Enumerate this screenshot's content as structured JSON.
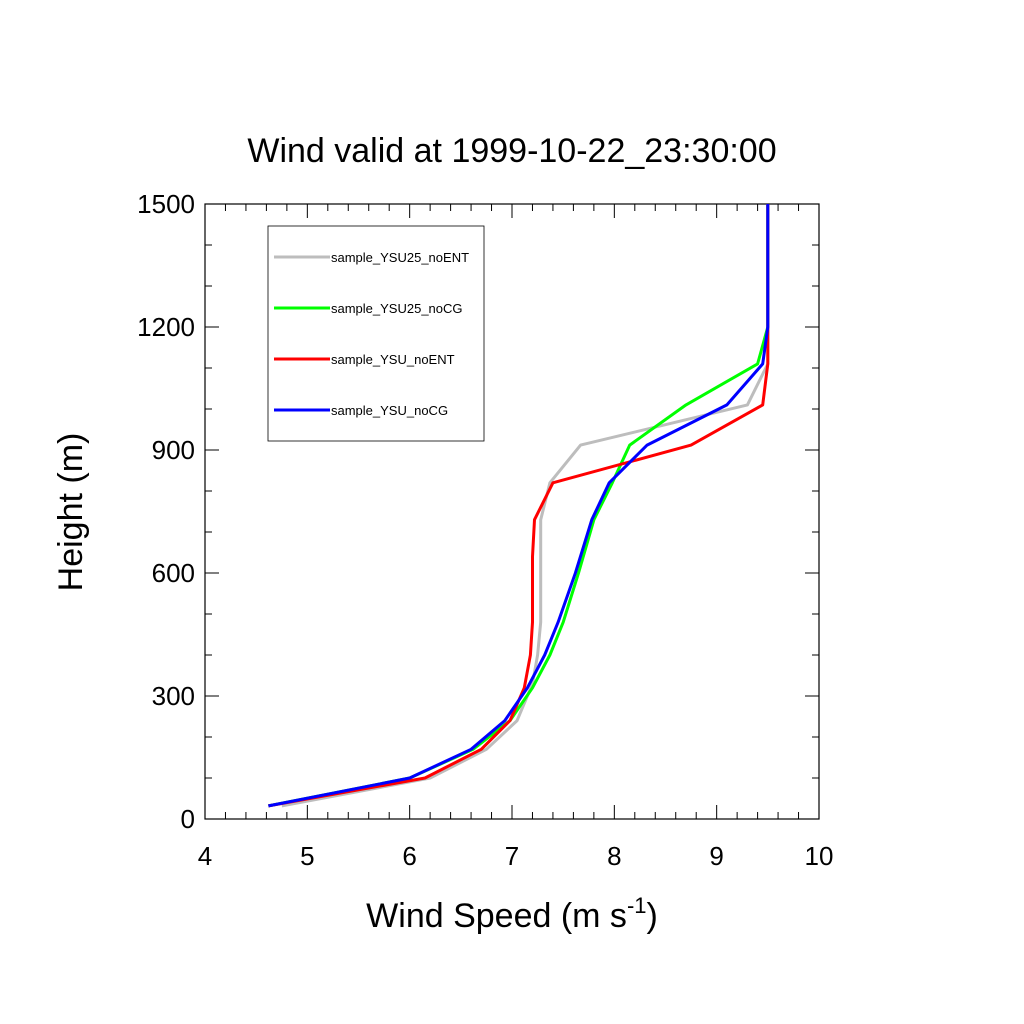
{
  "chart_data": {
    "type": "line",
    "title": "Wind valid at 1999-10-22_23:30:00",
    "xlabel": "Wind Speed (m s",
    "xlabel_superscript": "-1",
    "xlabel_suffix": ")",
    "ylabel": "Height (m)",
    "xlim": [
      4,
      10
    ],
    "ylim": [
      0,
      1500
    ],
    "xticks": [
      4,
      5,
      6,
      7,
      8,
      9,
      10
    ],
    "yticks": [
      0,
      300,
      600,
      900,
      1200,
      1500
    ],
    "legend_position": "top-left inside",
    "series": [
      {
        "name": "sample_YSU25_noENT",
        "color": "#bdbdbd",
        "points": [
          [
            4.75,
            32
          ],
          [
            6.2,
            100
          ],
          [
            6.75,
            170
          ],
          [
            7.05,
            240
          ],
          [
            7.2,
            330
          ],
          [
            7.25,
            400
          ],
          [
            7.28,
            480
          ],
          [
            7.28,
            600
          ],
          [
            7.28,
            730
          ],
          [
            7.37,
            820
          ],
          [
            7.67,
            912
          ],
          [
            9.3,
            1010
          ],
          [
            9.5,
            1110
          ],
          [
            9.5,
            1200
          ],
          [
            9.5,
            1500
          ]
        ]
      },
      {
        "name": "sample_YSU25_noCG",
        "color": "#00ff00",
        "points": [
          [
            4.62,
            32
          ],
          [
            6.0,
            100
          ],
          [
            6.62,
            170
          ],
          [
            6.98,
            240
          ],
          [
            7.2,
            320
          ],
          [
            7.37,
            400
          ],
          [
            7.5,
            480
          ],
          [
            7.65,
            600
          ],
          [
            7.8,
            730
          ],
          [
            7.98,
            820
          ],
          [
            8.15,
            912
          ],
          [
            8.7,
            1010
          ],
          [
            9.4,
            1110
          ],
          [
            9.5,
            1200
          ],
          [
            9.5,
            1500
          ]
        ]
      },
      {
        "name": "sample_YSU_noENT",
        "color": "#ff0000",
        "points": [
          [
            4.62,
            32
          ],
          [
            6.15,
            100
          ],
          [
            6.7,
            170
          ],
          [
            6.98,
            240
          ],
          [
            7.12,
            320
          ],
          [
            7.18,
            400
          ],
          [
            7.2,
            480
          ],
          [
            7.2,
            640
          ],
          [
            7.22,
            730
          ],
          [
            7.4,
            820
          ],
          [
            8.75,
            912
          ],
          [
            9.45,
            1010
          ],
          [
            9.5,
            1110
          ],
          [
            9.5,
            1200
          ],
          [
            9.5,
            1500
          ]
        ]
      },
      {
        "name": "sample_YSU_noCG",
        "color": "#0000ff",
        "points": [
          [
            4.62,
            32
          ],
          [
            6.0,
            100
          ],
          [
            6.6,
            170
          ],
          [
            6.93,
            240
          ],
          [
            7.15,
            320
          ],
          [
            7.32,
            400
          ],
          [
            7.45,
            480
          ],
          [
            7.62,
            600
          ],
          [
            7.78,
            730
          ],
          [
            7.95,
            820
          ],
          [
            8.32,
            912
          ],
          [
            9.1,
            1010
          ],
          [
            9.45,
            1110
          ],
          [
            9.5,
            1200
          ],
          [
            9.5,
            1500
          ]
        ]
      }
    ]
  }
}
